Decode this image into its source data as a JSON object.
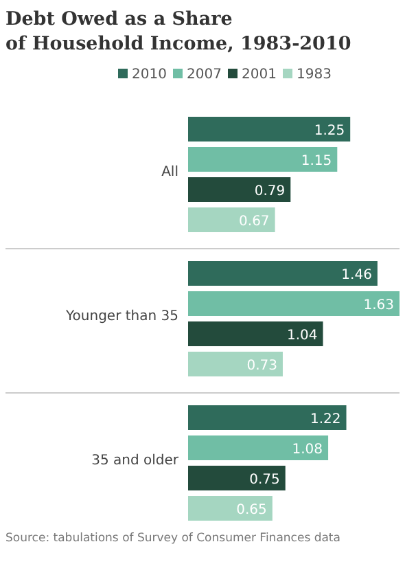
{
  "chart_data": {
    "type": "bar",
    "orientation": "horizontal",
    "title": "Debt Owed as a Share of Household Income, 1983-2010",
    "categories": [
      "All",
      "Younger than 35",
      "35 and older"
    ],
    "series": [
      {
        "name": "2010",
        "color": "#2f6b5b",
        "values": [
          1.25,
          1.46,
          1.22
        ]
      },
      {
        "name": "2007",
        "color": "#70bea5",
        "values": [
          1.15,
          1.63,
          1.08
        ]
      },
      {
        "name": "2001",
        "color": "#234b3c",
        "values": [
          0.79,
          1.04,
          0.75
        ]
      },
      {
        "name": "1983",
        "color": "#a5d6c1",
        "values": [
          0.67,
          0.73,
          0.65
        ]
      }
    ],
    "data_labels": true,
    "legend": "top",
    "annotations": [
      "Source: tabulations of Survey of Consumer Finances data"
    ]
  }
}
